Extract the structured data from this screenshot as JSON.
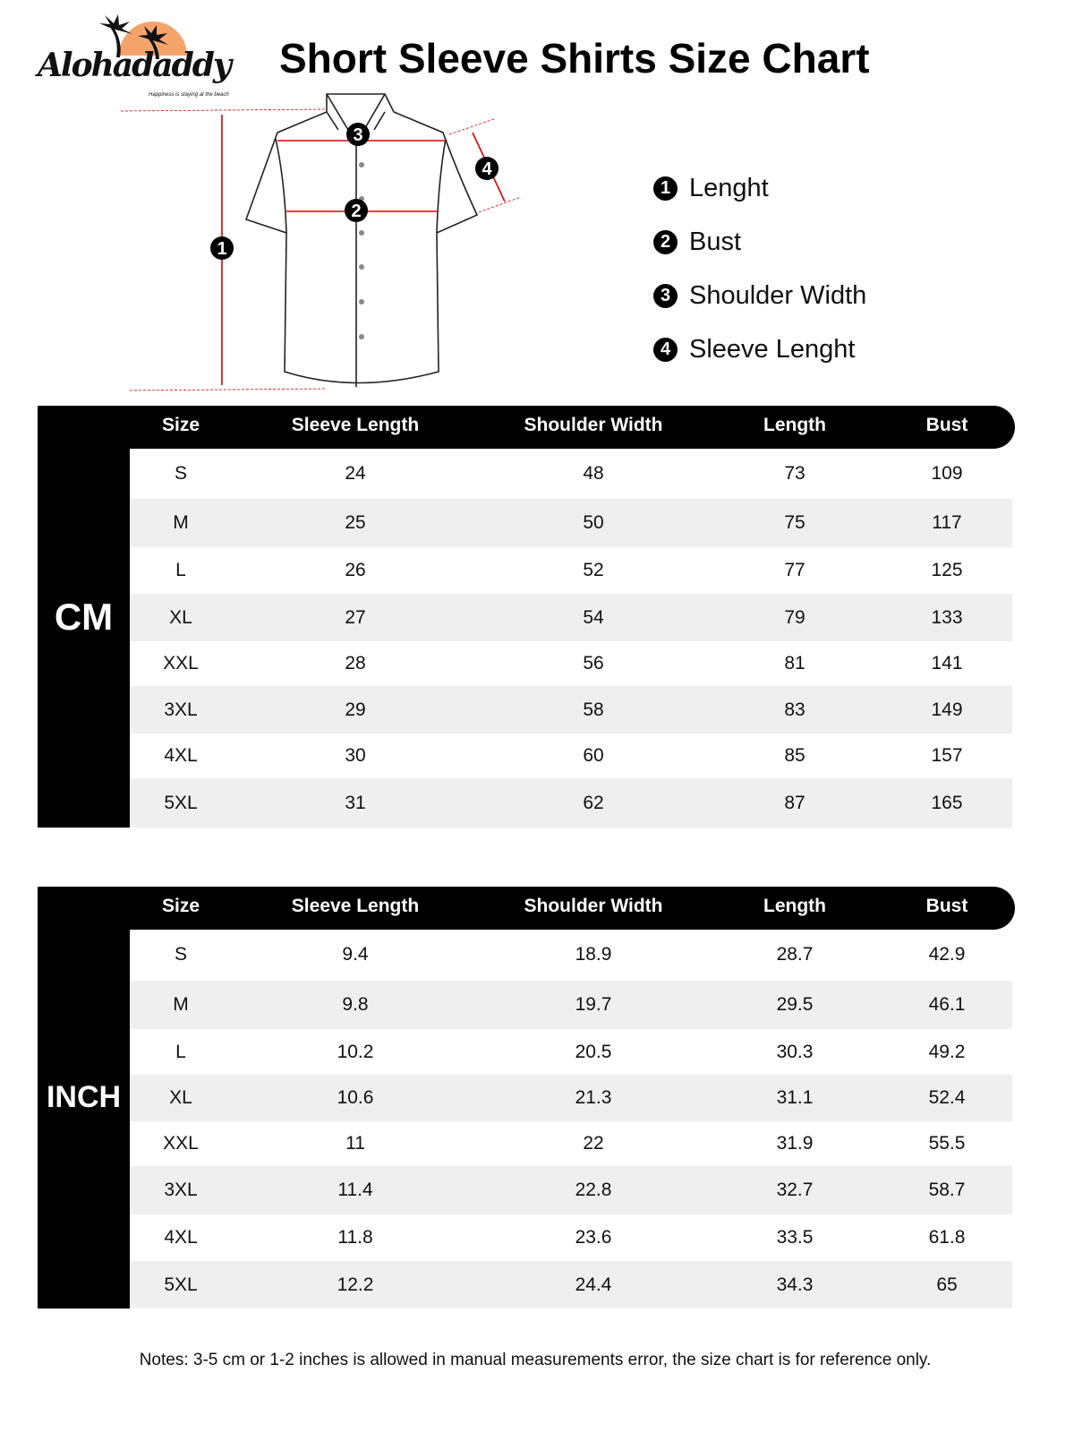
{
  "brand": {
    "name": "Alohadaddy",
    "tagline": "Happiness is staying at the beach",
    "accent": "#f4a36b"
  },
  "title": "Short Sleeve Shirts Size Chart",
  "diagram_markers": [
    "1",
    "2",
    "3",
    "4"
  ],
  "legend": [
    {
      "num": "1",
      "label": "Lenght"
    },
    {
      "num": "2",
      "label": "Bust"
    },
    {
      "num": "3",
      "label": "Shoulder Width"
    },
    {
      "num": "4",
      "label": "Sleeve Lenght"
    }
  ],
  "columns": [
    "Size",
    "Sleeve Length",
    "Shoulder Width",
    "Length",
    "Bust"
  ],
  "tables": [
    {
      "unit": "CM",
      "rows": [
        [
          "S",
          "24",
          "48",
          "73",
          "109"
        ],
        [
          "M",
          "25",
          "50",
          "75",
          "117"
        ],
        [
          "L",
          "26",
          "52",
          "77",
          "125"
        ],
        [
          "XL",
          "27",
          "54",
          "79",
          "133"
        ],
        [
          "XXL",
          "28",
          "56",
          "81",
          "141"
        ],
        [
          "3XL",
          "29",
          "58",
          "83",
          "149"
        ],
        [
          "4XL",
          "30",
          "60",
          "85",
          "157"
        ],
        [
          "5XL",
          "31",
          "62",
          "87",
          "165"
        ]
      ]
    },
    {
      "unit": "INCH",
      "rows": [
        [
          "S",
          "9.4",
          "18.9",
          "28.7",
          "42.9"
        ],
        [
          "M",
          "9.8",
          "19.7",
          "29.5",
          "46.1"
        ],
        [
          "L",
          "10.2",
          "20.5",
          "30.3",
          "49.2"
        ],
        [
          "XL",
          "10.6",
          "21.3",
          "31.1",
          "52.4"
        ],
        [
          "XXL",
          "11",
          "22",
          "31.9",
          "55.5"
        ],
        [
          "3XL",
          "11.4",
          "22.8",
          "32.7",
          "58.7"
        ],
        [
          "4XL",
          "11.8",
          "23.6",
          "33.5",
          "61.8"
        ],
        [
          "5XL",
          "12.2",
          "24.4",
          "34.3",
          "65"
        ]
      ]
    }
  ],
  "notes": "Notes: 3-5 cm or 1-2 inches is allowed in manual measurements error, the size chart is for reference only."
}
